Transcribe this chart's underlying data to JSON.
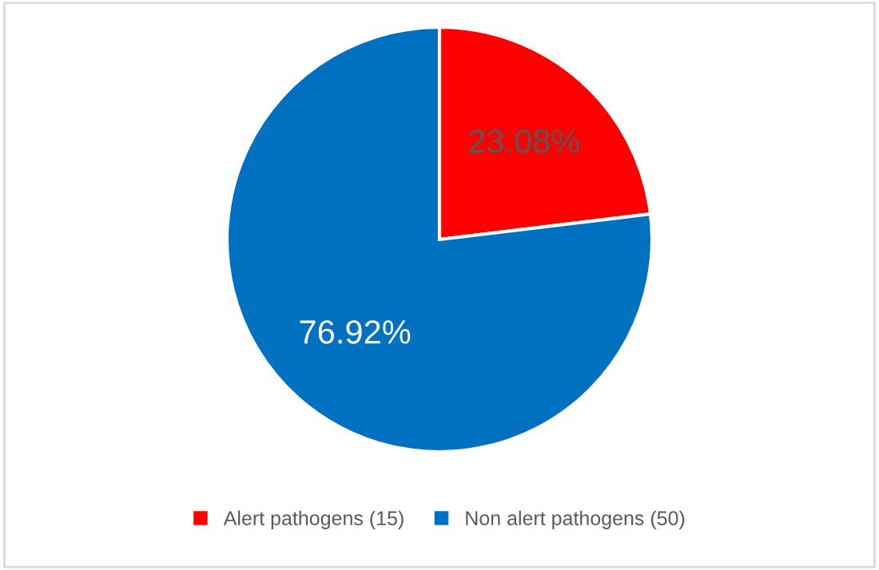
{
  "chart_data": {
    "type": "pie",
    "categories": [
      "Alert pathogens (15)",
      "Non alert pathogens (50)"
    ],
    "values": [
      23.08,
      76.92
    ],
    "colors": [
      "#ff0000",
      "#0070c0"
    ],
    "value_labels": [
      "23.08%",
      "76.92%"
    ],
    "legend": "bottom"
  }
}
